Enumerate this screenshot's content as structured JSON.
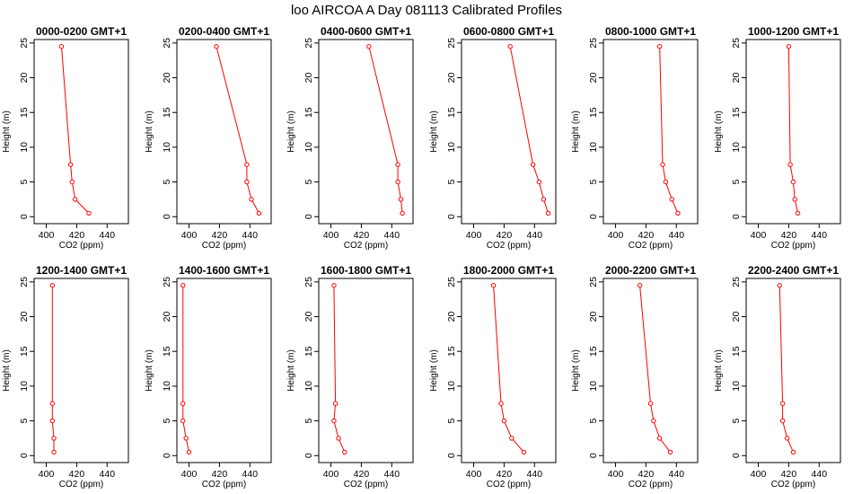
{
  "title": "loo AIRCOA A  Day 081113  Calibrated Profiles",
  "chart_data": {
    "type": "line",
    "title": "loo AIRCOA A  Day 081113  Calibrated Profiles",
    "xlabel": "CO2 (ppm)",
    "ylabel": "Height (m)",
    "xlim": [
      392,
      454
    ],
    "ylim": [
      -1,
      25.5
    ],
    "xticks": [
      400,
      420,
      440
    ],
    "yticks": [
      0,
      5,
      10,
      15,
      20,
      25
    ],
    "heights": [
      0.5,
      2.5,
      5,
      7.5,
      24.5
    ],
    "series_color": "#ff0000",
    "panels": [
      {
        "name": "0000-0200 GMT+1",
        "values": [
          428,
          419,
          417,
          416,
          410
        ]
      },
      {
        "name": "0200-0400 GMT+1",
        "values": [
          446,
          441,
          438,
          438,
          418
        ]
      },
      {
        "name": "0400-0600 GMT+1",
        "values": [
          447,
          446,
          444,
          444,
          425
        ]
      },
      {
        "name": "0600-0800 GMT+1",
        "values": [
          449,
          446,
          443,
          439,
          424
        ]
      },
      {
        "name": "0800-1000 GMT+1",
        "values": [
          441,
          437,
          433,
          431,
          429
        ]
      },
      {
        "name": "1000-1200 GMT+1",
        "values": [
          426,
          424,
          423,
          421,
          420
        ]
      },
      {
        "name": "1200-1400 GMT+1",
        "values": [
          405,
          405,
          404,
          404,
          404
        ]
      },
      {
        "name": "1400-1600 GMT+1",
        "values": [
          400,
          398,
          396,
          396,
          396
        ]
      },
      {
        "name": "1600-1800 GMT+1",
        "values": [
          409,
          405,
          402,
          403,
          402
        ]
      },
      {
        "name": "1800-2000 GMT+1",
        "values": [
          433,
          425,
          420,
          418,
          413
        ]
      },
      {
        "name": "2000-2200 GMT+1",
        "values": [
          436,
          429,
          425,
          423,
          416
        ]
      },
      {
        "name": "2200-2400 GMT+1",
        "values": [
          423,
          419,
          416,
          416,
          414
        ]
      }
    ]
  }
}
